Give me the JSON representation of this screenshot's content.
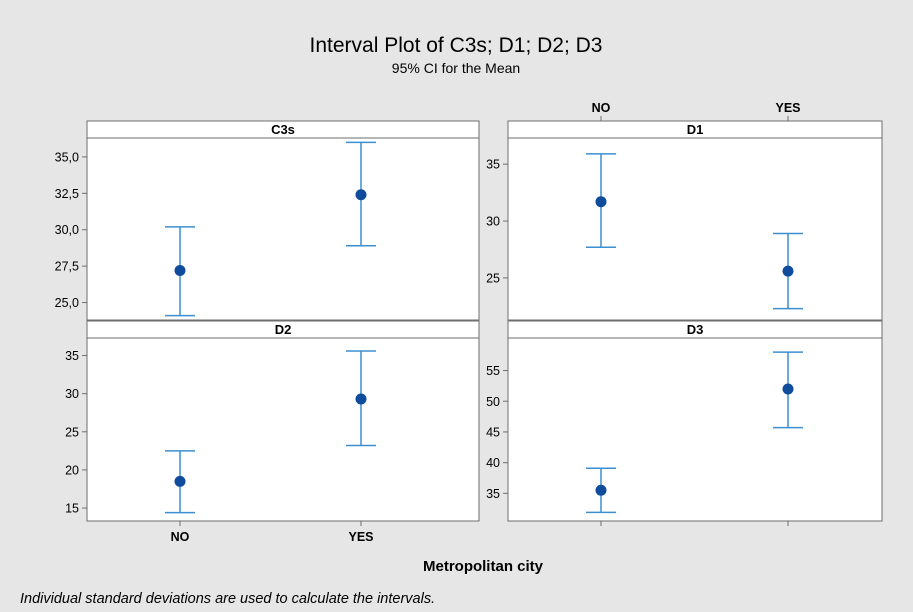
{
  "chart_data": {
    "type": "interval",
    "title": "Interval Plot of C3s; D1; D2; D3",
    "subtitle": "95% CI for the Mean",
    "xlabel": "Metropolitan city",
    "categories": [
      "NO",
      "YES"
    ],
    "footnote": "Individual standard deviations are used to calculate the intervals.",
    "colors": {
      "interval": "#3b8fd0",
      "mean": "#0f4c9c",
      "background": "#e6e6e6",
      "panel": "#ffffff"
    },
    "panels": [
      {
        "name": "C3s",
        "ylim": [
          23.8,
          36.3
        ],
        "ticks": [
          25.0,
          27.5,
          30.0,
          32.5,
          35.0
        ],
        "tick_labels": [
          "25,0",
          "27,5",
          "30,0",
          "32,5",
          "35,0"
        ],
        "series": [
          {
            "category": "NO",
            "mean": 27.2,
            "lower": 24.1,
            "upper": 30.2
          },
          {
            "category": "YES",
            "mean": 32.4,
            "lower": 28.9,
            "upper": 36.0
          }
        ]
      },
      {
        "name": "D1",
        "ylim": [
          21.3,
          37.3
        ],
        "ticks": [
          25,
          30,
          35
        ],
        "tick_labels": [
          "25",
          "30",
          "35"
        ],
        "series": [
          {
            "category": "NO",
            "mean": 31.7,
            "lower": 27.7,
            "upper": 35.9
          },
          {
            "category": "YES",
            "mean": 25.6,
            "lower": 22.3,
            "upper": 28.9
          }
        ]
      },
      {
        "name": "D2",
        "ylim": [
          13.3,
          37.3
        ],
        "ticks": [
          15,
          20,
          25,
          30,
          35
        ],
        "tick_labels": [
          "15",
          "20",
          "25",
          "30",
          "35"
        ],
        "series": [
          {
            "category": "NO",
            "mean": 18.5,
            "lower": 14.4,
            "upper": 22.5
          },
          {
            "category": "YES",
            "mean": 29.3,
            "lower": 23.2,
            "upper": 35.6
          }
        ]
      },
      {
        "name": "D3",
        "ylim": [
          30.5,
          60.3
        ],
        "ticks": [
          35,
          40,
          45,
          50,
          55
        ],
        "tick_labels": [
          "35",
          "40",
          "45",
          "50",
          "55"
        ],
        "series": [
          {
            "category": "NO",
            "mean": 35.5,
            "lower": 31.9,
            "upper": 39.1
          },
          {
            "category": "YES",
            "mean": 52.0,
            "lower": 45.7,
            "upper": 58.0
          }
        ]
      }
    ]
  }
}
